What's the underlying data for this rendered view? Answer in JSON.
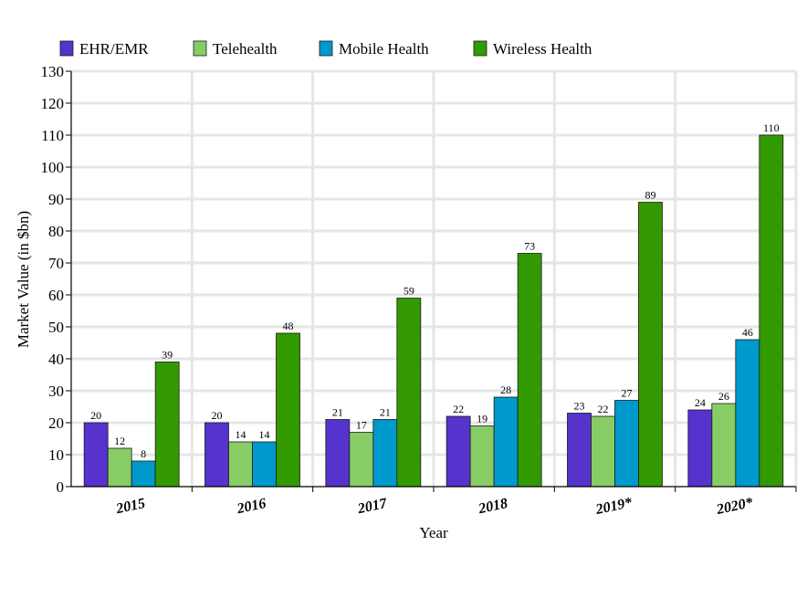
{
  "chart_data": {
    "type": "bar",
    "categories": [
      "2015",
      "2016",
      "2017",
      "2018",
      "2019*",
      "2020*"
    ],
    "series": [
      {
        "name": "EHR/EMR",
        "color": "#5533cc",
        "values": [
          20,
          20,
          21,
          22,
          23,
          24
        ]
      },
      {
        "name": "Telehealth",
        "color": "#88cc66",
        "values": [
          12,
          14,
          17,
          19,
          22,
          26
        ]
      },
      {
        "name": "Mobile Health",
        "color": "#0099cc",
        "values": [
          8,
          14,
          21,
          28,
          27,
          46
        ]
      },
      {
        "name": "Wireless Health",
        "color": "#339900",
        "values": [
          39,
          48,
          59,
          73,
          89,
          110
        ]
      }
    ],
    "xlabel": "Year",
    "ylabel": "Market Value (in $bn)",
    "ylim": [
      0,
      130
    ],
    "yticks": [
      0,
      10,
      20,
      30,
      40,
      50,
      60,
      70,
      80,
      90,
      100,
      110,
      120,
      130
    ],
    "grid": true,
    "legend_position": "top-left"
  }
}
